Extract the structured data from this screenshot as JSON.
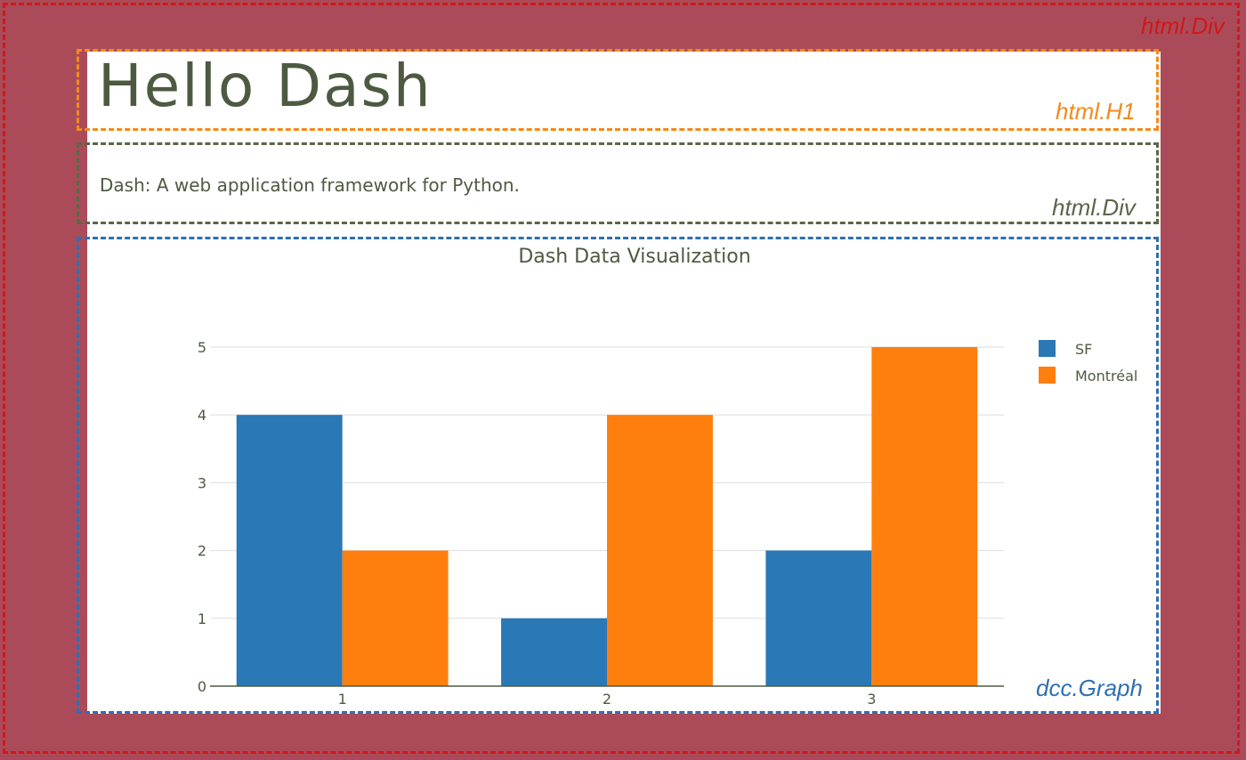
{
  "labels": {
    "outer": "html.Div",
    "h1": "html.H1",
    "div": "html.Div",
    "graph": "dcc.Graph"
  },
  "header": {
    "title": "Hello Dash"
  },
  "description": {
    "text": "Dash: A web application framework for Python."
  },
  "colors": {
    "background": "#ab4b5a",
    "outer_border": "#d01818",
    "h1_border": "#f28a1c",
    "div_border": "#5c6548",
    "graph_border": "#2f6fb0",
    "text": "#4d5a41",
    "sf": "#2a78b5",
    "montreal": "#ff7f0e"
  },
  "chart_data": {
    "type": "bar",
    "title": "Dash Data Visualization",
    "categories": [
      "1",
      "2",
      "3"
    ],
    "series": [
      {
        "name": "SF",
        "values": [
          4,
          1,
          2
        ],
        "color": "#2a78b5"
      },
      {
        "name": "Montréal",
        "values": [
          2,
          4,
          5
        ],
        "color": "#ff7f0e"
      }
    ],
    "ylim": [
      0,
      5
    ],
    "yticks": [
      0,
      1,
      2,
      3,
      4,
      5
    ],
    "grid": true,
    "legend_position": "top-right"
  }
}
